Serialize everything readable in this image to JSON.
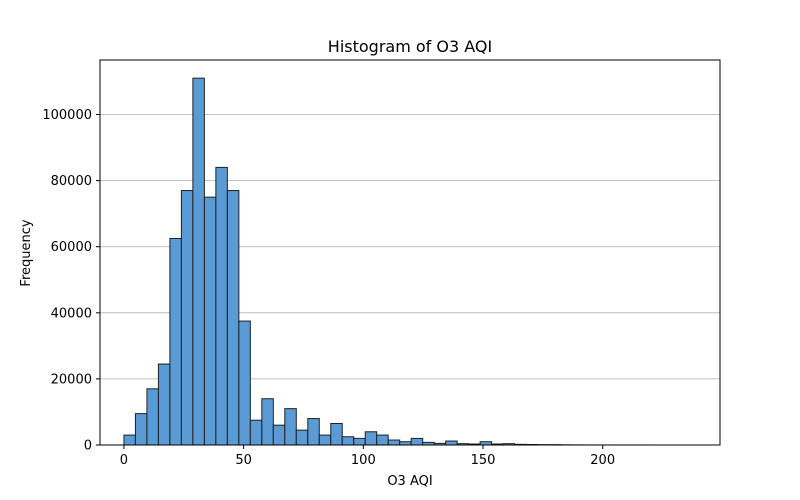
{
  "chart_data": {
    "type": "bar",
    "title": "Histogram of O3 AQI",
    "xlabel": "O3 AQI",
    "ylabel": "Frequency",
    "xlim": [
      -10,
      249
    ],
    "ylim": [
      0,
      116500
    ],
    "x_ticks": [
      0,
      50,
      100,
      150,
      200
    ],
    "y_ticks": [
      0,
      20000,
      40000,
      60000,
      80000,
      100000
    ],
    "grid": "horizontal",
    "bar_color": "#5b9bd5",
    "bin_start": 0,
    "bin_width": 4.8,
    "values": [
      3000,
      9500,
      17000,
      24500,
      62500,
      77000,
      111000,
      75000,
      84000,
      77000,
      37500,
      7500,
      14000,
      6000,
      11000,
      4500,
      8000,
      3000,
      6500,
      2500,
      2000,
      4000,
      3000,
      1500,
      1000,
      2000,
      800,
      500,
      1200,
      400,
      300,
      1000,
      300,
      400,
      200,
      150,
      100,
      100,
      50,
      30,
      20,
      10,
      10,
      5,
      5,
      5,
      2,
      2,
      1
    ]
  }
}
